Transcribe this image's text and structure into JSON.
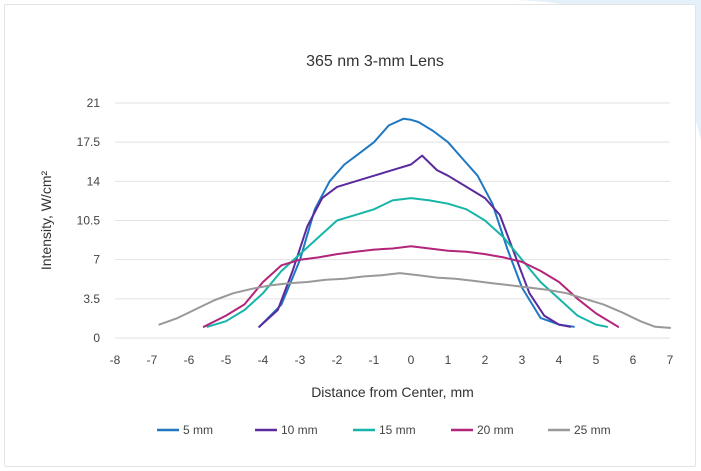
{
  "chart_data": {
    "type": "line",
    "title": "365 nm 3-mm Lens",
    "xlabel": "Distance from Center, mm",
    "ylabel": "Intensity, W/cm²",
    "xlim": [
      -8,
      7
    ],
    "ylim": [
      0,
      21
    ],
    "x_ticks": [
      "-8",
      "-7",
      "-6",
      "-5",
      "-4",
      "-3",
      "-2",
      "-1",
      "0",
      "1",
      "2",
      "3",
      "4",
      "5",
      "6",
      "7"
    ],
    "y_ticks": [
      "0",
      "3.5",
      "7",
      "10.5",
      "14",
      "17.5",
      "21"
    ],
    "grid": true,
    "legend_position": "bottom",
    "series": [
      {
        "name": "5 mm",
        "color": "#1f78c1",
        "x": [
          -4.1,
          -3.5,
          -3.0,
          -2.6,
          -2.2,
          -1.8,
          -1.4,
          -1.0,
          -0.6,
          -0.2,
          0.0,
          0.2,
          0.6,
          1.0,
          1.4,
          1.8,
          2.2,
          2.6,
          3.0,
          3.5,
          4.0,
          4.4
        ],
        "y": [
          1.0,
          3.0,
          7.0,
          11.5,
          14.0,
          15.5,
          16.5,
          17.5,
          19.0,
          19.6,
          19.5,
          19.3,
          18.5,
          17.5,
          16.0,
          14.5,
          12.0,
          8.0,
          4.5,
          1.8,
          1.2,
          1.0
        ]
      },
      {
        "name": "10 mm",
        "color": "#5b2a9d",
        "x": [
          -4.1,
          -3.6,
          -3.2,
          -2.8,
          -2.4,
          -2.0,
          -1.5,
          -1.0,
          -0.5,
          0.0,
          0.3,
          0.7,
          1.0,
          1.5,
          2.0,
          2.4,
          2.8,
          3.2,
          3.6,
          4.0,
          4.3
        ],
        "y": [
          1.0,
          2.5,
          6.0,
          10.0,
          12.5,
          13.5,
          14.0,
          14.5,
          15.0,
          15.5,
          16.3,
          15.0,
          14.5,
          13.5,
          12.5,
          11.0,
          7.5,
          4.0,
          2.0,
          1.2,
          1.0
        ]
      },
      {
        "name": "15 mm",
        "color": "#16b5a8",
        "x": [
          -5.5,
          -5.0,
          -4.5,
          -4.0,
          -3.5,
          -3.0,
          -2.5,
          -2.0,
          -1.5,
          -1.0,
          -0.5,
          0.0,
          0.5,
          1.0,
          1.5,
          2.0,
          2.5,
          3.0,
          3.5,
          4.0,
          4.5,
          5.0,
          5.3
        ],
        "y": [
          1.0,
          1.5,
          2.5,
          4.0,
          6.0,
          7.5,
          9.0,
          10.5,
          11.0,
          11.5,
          12.3,
          12.5,
          12.3,
          12.0,
          11.5,
          10.5,
          9.0,
          7.0,
          5.0,
          3.5,
          2.0,
          1.2,
          1.0
        ]
      },
      {
        "name": "20 mm",
        "color": "#b3247b",
        "x": [
          -5.6,
          -5.0,
          -4.5,
          -4.0,
          -3.5,
          -3.0,
          -2.5,
          -2.0,
          -1.5,
          -1.0,
          -0.5,
          0.0,
          0.5,
          1.0,
          1.5,
          2.0,
          2.5,
          3.0,
          3.5,
          4.0,
          4.5,
          5.0,
          5.6
        ],
        "y": [
          1.0,
          2.0,
          3.0,
          5.0,
          6.5,
          7.0,
          7.2,
          7.5,
          7.7,
          7.9,
          8.0,
          8.2,
          8.0,
          7.8,
          7.7,
          7.5,
          7.2,
          6.8,
          6.0,
          5.0,
          3.5,
          2.2,
          1.0
        ]
      },
      {
        "name": "25 mm",
        "color": "#999999",
        "x": [
          -6.8,
          -6.3,
          -5.8,
          -5.3,
          -4.8,
          -4.3,
          -3.8,
          -3.3,
          -2.8,
          -2.3,
          -1.8,
          -1.3,
          -0.8,
          -0.3,
          0.2,
          0.7,
          1.2,
          1.7,
          2.2,
          2.7,
          3.2,
          3.7,
          4.2,
          4.7,
          5.2,
          5.7,
          6.2,
          6.6,
          7.0
        ],
        "y": [
          1.2,
          1.8,
          2.6,
          3.4,
          4.0,
          4.4,
          4.7,
          4.9,
          5.0,
          5.2,
          5.3,
          5.5,
          5.6,
          5.8,
          5.6,
          5.4,
          5.3,
          5.1,
          4.9,
          4.7,
          4.5,
          4.3,
          4.0,
          3.5,
          3.0,
          2.3,
          1.5,
          1.0,
          0.9
        ]
      }
    ]
  }
}
